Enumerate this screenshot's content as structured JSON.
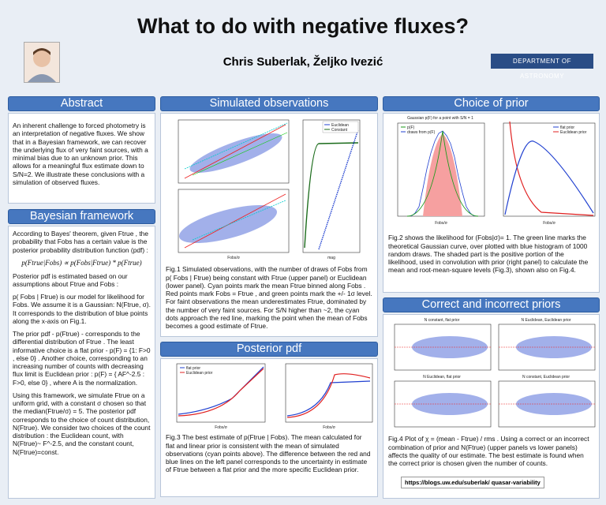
{
  "header": {
    "title": "What to do with negative fluxes?",
    "authors": "Chris Suberlak, Željko Ivezić",
    "affiliation": "DEPARTMENT OF ASTRONOMY"
  },
  "abstract": {
    "heading": "Abstract",
    "paragraphs": [
      "An inherent challenge to forced photometry is an interpretation of negative fluxes. We show that in a Bayesian framework, we can recover the underlying flux of very faint sources, with a minimal bias due to an unknown prior. This allows for a meaningful flux estimate down to S/N=2. We illustrate these conclusions with a simulation of observed fluxes."
    ]
  },
  "bayesian_framework": {
    "heading": "Bayesian framework",
    "paragraphs": [
      "According to Bayes' theorem, given Ftrue , the probability that Fobs has a certain value is the posterior probability distribution function (pdf) :",
      "p(Ftrue|Fobs) ∝ p(Fobs|Ftrue) * p(Ftrue)",
      "Posterior pdf is estimated based on our assumptions about Ftrue and Fobs :",
      "p( Fobs | Ftrue) is our model for likelihood for Fobs. We assume it is a Gaussian: N(Ftrue, σ). It corresponds to the distribution of blue points along the x-axis on Fig.1.",
      "The prior pdf - p(Ftrue) - corresponds to the differential distribution of Ftrue . The least informative choice is a flat prior - p(F) = {1: F>0 , else 0} . Another choice, corresponding to an increasing number of counts with decreasing flux limit is Euclidean prior : p(F) = { AF^-2.5 : F>0, else 0} , where A is the normalization.",
      "Using this framework, we simulate Ftrue on a uniform grid, with a constant σ chosen so that the median(Ftrue/σ) = 5. The posterior pdf corresponds to the choice of count distribution, N(Ftrue). We consider two choices of the count distribution : the Euclidean count, with N(Ftrue)~ F^-2.5, and the constant count, N(Ftrue)=const."
    ]
  },
  "simulated_observations": {
    "heading": "Simulated observations",
    "legend": [
      "Euclidean",
      "Constant"
    ],
    "x_label": "Fobs/σ",
    "right_x_label": "mag",
    "caption": "Fig.1 Simulated observations, with the number of draws of Fobs from p( Fobs | Ftrue) being constant with Ftrue (upper panel) or Euclidean (lower panel). Cyan points mark the mean Ftrue binned along Fobs . Red points mark Fobs = Ftrue , and green points mark the +/- 1σ level. For faint observations the mean underestimates Ftrue, dominated by the number of very faint sources. For S/N higher than ~2, the cyan dots approach the red line, marking the point when the mean of Fobs becomes a good estimate of Ftrue."
  },
  "posterior_pdf": {
    "heading": "Posterior pdf",
    "legend": [
      "flat prior",
      "Euclidean prior"
    ],
    "x_label": "Fobs/σ",
    "caption": "Fig.3 The best estimate of p(Ftrue | Fobs). The mean calculated for flat and linear prior is consistent with the mean of simulated observations (cyan points above). The difference between the red and blue lines on the left panel corresponds to the uncertainty in estimate of Ftrue between a flat prior and the more specific Euclidean prior."
  },
  "choice_of_prior": {
    "heading": "Choice of prior",
    "left_title": "Gaussian p(F) for a point with S/N = 1",
    "left_legend": [
      "p(F)",
      "draws from p(F)"
    ],
    "right_legend": [
      "flat prior",
      "Euclidean prior"
    ],
    "x_label": "Fobs/σ",
    "caption": "Fig.2 shows the likelihood for (Fobs|σ)= 1. The green line marks the theoretical Gaussian curve, over plotted with blue histogram of 1000 random draws. The shaded part is the positive portion of the likelihood, used in convolution with prior (right panel) to calculate the mean and root-mean-square levels (Fig.3), shown also on Fig.4."
  },
  "priors_comparison": {
    "heading": "Correct and incorrect priors",
    "panel_titles": [
      "N constant, flat prior",
      "N Euclidean, Euclidean prior",
      "N Euclidean, flat prior",
      "N constant, Euclidean prior"
    ],
    "caption": "Fig.4 Plot of χ = (mean - Ftrue) / rms . Using a correct or an incorrect combination of prior and N(Ftrue) (upper panels vs lower panels) affects the quality of our estimate. The best estimate is found when the correct prior is chosen given the number of counts."
  },
  "link": "https://blogs.uw.edu/suberlak/ quasar-variability"
}
